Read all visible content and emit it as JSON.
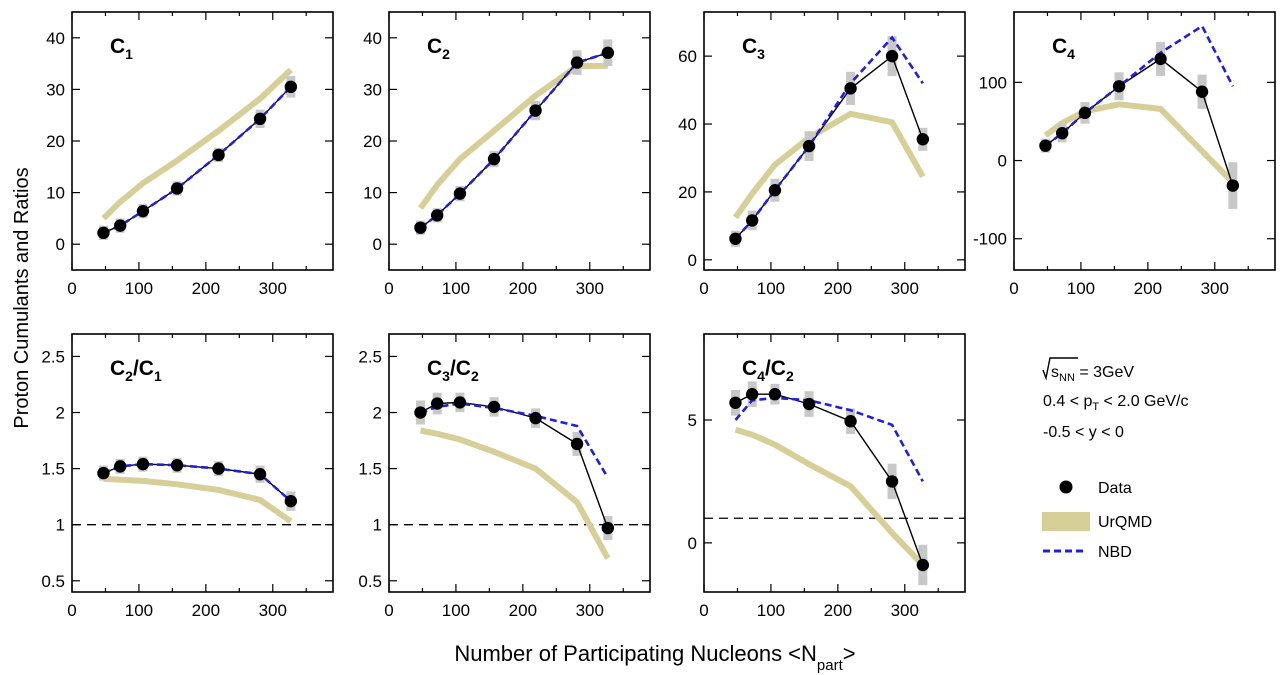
{
  "figure": {
    "ylabel": "Proton Cumulants and Ratios",
    "xlabel_main": "Number of Participating Nucleons <N",
    "xlabel_sub": "part",
    "xlabel_end": ">"
  },
  "info": {
    "sqrt_root": "s",
    "sqrt_sub": "NN",
    "energy_value": " = 3GeV",
    "pt_prefix": "0.4 < p",
    "pt_sub": "T",
    "pt_suffix": " < 2.0 GeV/c",
    "rapidity": "-0.5 < y < 0"
  },
  "legend": {
    "items": [
      {
        "label": "Data",
        "kind": "marker",
        "color": "#000000"
      },
      {
        "label": "UrQMD",
        "kind": "band",
        "color": "#d6cf98"
      },
      {
        "label": "NBD",
        "kind": "dashed",
        "color": "#1f1fe0"
      }
    ]
  },
  "colors": {
    "data": "#000000",
    "error_band": "#c8c8c8",
    "urqmd": "#d6cf98",
    "nbd": "#1f1fe0",
    "reference_line": "#000000"
  },
  "chart_data": [
    {
      "type": "line",
      "title_main": "C",
      "title_sub": "1",
      "title_main2": "",
      "title_sub2": "",
      "xlim": [
        0,
        390
      ],
      "ylim": [
        -5,
        45
      ],
      "xticks": [
        0,
        100,
        200,
        300
      ],
      "yticks": [
        0,
        10,
        20,
        30,
        40
      ],
      "series": [
        {
          "name": "Data",
          "x": [
            47,
            72,
            106,
            157,
            219,
            281,
            327
          ],
          "y": [
            2.2,
            3.6,
            6.4,
            10.8,
            17.3,
            24.3,
            30.5
          ],
          "err": [
            0.8,
            0.8,
            0.8,
            0.8,
            0.8,
            1.2,
            1.5
          ]
        },
        {
          "name": "UrQMD",
          "x": [
            47,
            72,
            106,
            157,
            219,
            281,
            327
          ],
          "y": [
            5.0,
            8.2,
            11.8,
            16.2,
            22.0,
            28.2,
            33.8
          ]
        },
        {
          "name": "NBD",
          "x": [
            47,
            72,
            106,
            157,
            219,
            281,
            327
          ],
          "y": [
            2.2,
            3.6,
            6.4,
            10.8,
            17.3,
            24.3,
            30.5
          ]
        }
      ]
    },
    {
      "type": "line",
      "title_main": "C",
      "title_sub": "2",
      "title_main2": "",
      "title_sub2": "",
      "xlim": [
        0,
        390
      ],
      "ylim": [
        -5,
        45
      ],
      "xticks": [
        0,
        100,
        200,
        300
      ],
      "yticks": [
        0,
        10,
        20,
        30,
        40
      ],
      "series": [
        {
          "name": "Data",
          "x": [
            47,
            72,
            106,
            157,
            219,
            281,
            327
          ],
          "y": [
            3.2,
            5.6,
            9.8,
            16.5,
            25.9,
            35.2,
            37.1
          ],
          "err": [
            0.8,
            0.8,
            0.9,
            1.0,
            1.3,
            1.8,
            2.0
          ]
        },
        {
          "name": "UrQMD",
          "x": [
            47,
            72,
            106,
            157,
            219,
            281,
            327
          ],
          "y": [
            7.0,
            11.5,
            16.5,
            22.0,
            28.8,
            34.5,
            34.6
          ]
        },
        {
          "name": "NBD",
          "x": [
            47,
            72,
            106,
            157,
            219,
            281,
            327
          ],
          "y": [
            3.2,
            5.6,
            9.8,
            16.5,
            25.9,
            35.2,
            37.1
          ]
        }
      ]
    },
    {
      "type": "line",
      "title_main": "C",
      "title_sub": "3",
      "title_main2": "",
      "title_sub2": "",
      "xlim": [
        0,
        390
      ],
      "ylim": [
        -3,
        73
      ],
      "xticks": [
        0,
        100,
        200,
        300
      ],
      "yticks": [
        0,
        20,
        40,
        60
      ],
      "series": [
        {
          "name": "Data",
          "x": [
            47,
            72,
            106,
            157,
            219,
            281,
            327
          ],
          "y": [
            6.2,
            11.6,
            20.5,
            33.5,
            50.5,
            60.0,
            35.5
          ],
          "err": [
            1.5,
            2.0,
            2.5,
            3.5,
            4.0,
            5.0,
            2.5
          ]
        },
        {
          "name": "UrQMD",
          "x": [
            47,
            72,
            106,
            157,
            219,
            281,
            327
          ],
          "y": [
            12.5,
            19.5,
            28.0,
            36.0,
            43.0,
            40.5,
            24.5
          ]
        },
        {
          "name": "NBD",
          "x": [
            47,
            72,
            106,
            157,
            219,
            281,
            327
          ],
          "y": [
            6.2,
            11.6,
            20.5,
            33.5,
            52.0,
            65.5,
            52.0
          ]
        }
      ]
    },
    {
      "type": "line",
      "title_main": "C",
      "title_sub": "4",
      "title_main2": "",
      "title_sub2": "",
      "xlim": [
        0,
        390
      ],
      "ylim": [
        -140,
        190
      ],
      "xticks": [
        0,
        100,
        200,
        300
      ],
      "yticks": [
        -100,
        0,
        100
      ],
      "series": [
        {
          "name": "Data",
          "x": [
            47,
            72,
            106,
            157,
            219,
            281,
            327
          ],
          "y": [
            19,
            35,
            61,
            95,
            130,
            88,
            -32
          ],
          "err": [
            5,
            8,
            10,
            14,
            18,
            18,
            26
          ]
        },
        {
          "name": "UrQMD",
          "x": [
            47,
            72,
            106,
            157,
            219,
            281,
            327
          ],
          "y": [
            32,
            48,
            63,
            72,
            66,
            12,
            -28
          ]
        },
        {
          "name": "NBD",
          "x": [
            47,
            72,
            106,
            157,
            219,
            281,
            327
          ],
          "y": [
            19,
            35,
            61,
            95,
            138,
            172,
            95
          ]
        }
      ]
    },
    {
      "type": "line",
      "title_main": "C",
      "title_sub": "2",
      "title_main2": "/C",
      "title_sub2": "1",
      "xlim": [
        0,
        390
      ],
      "ylim": [
        0.4,
        2.7
      ],
      "xticks": [
        0,
        100,
        200,
        300
      ],
      "yticks": [
        0.5,
        1,
        1.5,
        2,
        2.5
      ],
      "reference_y": 1,
      "series": [
        {
          "name": "Data",
          "x": [
            47,
            72,
            106,
            157,
            219,
            281,
            327
          ],
          "y": [
            1.46,
            1.52,
            1.54,
            1.53,
            1.5,
            1.45,
            1.21
          ],
          "err": [
            0.04,
            0.04,
            0.04,
            0.04,
            0.04,
            0.05,
            0.06
          ]
        },
        {
          "name": "UrQMD",
          "x": [
            47,
            72,
            106,
            157,
            219,
            281,
            327
          ],
          "y": [
            1.41,
            1.4,
            1.39,
            1.36,
            1.31,
            1.22,
            1.03
          ]
        },
        {
          "name": "NBD",
          "x": [
            47,
            72,
            106,
            157,
            219,
            281,
            327
          ],
          "y": [
            1.46,
            1.52,
            1.54,
            1.53,
            1.5,
            1.45,
            1.21
          ]
        }
      ]
    },
    {
      "type": "line",
      "title_main": "C",
      "title_sub": "3",
      "title_main2": "/C",
      "title_sub2": "2",
      "xlim": [
        0,
        390
      ],
      "ylim": [
        0.4,
        2.7
      ],
      "xticks": [
        0,
        100,
        200,
        300
      ],
      "yticks": [
        0.5,
        1,
        1.5,
        2,
        2.5
      ],
      "reference_y": 1,
      "series": [
        {
          "name": "Data",
          "x": [
            47,
            72,
            106,
            157,
            219,
            281,
            327
          ],
          "y": [
            2.0,
            2.08,
            2.09,
            2.05,
            1.95,
            1.72,
            0.97
          ],
          "err": [
            0.08,
            0.07,
            0.06,
            0.06,
            0.06,
            0.08,
            0.08
          ]
        },
        {
          "name": "UrQMD",
          "x": [
            47,
            72,
            106,
            157,
            219,
            281,
            327
          ],
          "y": [
            1.84,
            1.81,
            1.76,
            1.65,
            1.5,
            1.2,
            0.7
          ]
        },
        {
          "name": "NBD",
          "x": [
            47,
            72,
            106,
            157,
            219,
            281,
            327
          ],
          "y": [
            2.0,
            2.05,
            2.08,
            2.04,
            1.97,
            1.88,
            1.42
          ]
        }
      ]
    },
    {
      "type": "line",
      "title_main": "C",
      "title_sub": "4",
      "title_main2": "/C",
      "title_sub2": "2",
      "xlim": [
        0,
        390
      ],
      "ylim": [
        -2,
        8.5
      ],
      "xticks": [
        0,
        100,
        200,
        300
      ],
      "yticks": [
        0,
        5
      ],
      "reference_y": 1,
      "series": [
        {
          "name": "Data",
          "x": [
            47,
            72,
            106,
            157,
            219,
            281,
            327
          ],
          "y": [
            5.7,
            6.05,
            6.05,
            5.65,
            4.95,
            2.5,
            -0.9
          ],
          "err": [
            0.4,
            0.4,
            0.3,
            0.4,
            0.4,
            0.6,
            0.7
          ]
        },
        {
          "name": "UrQMD",
          "x": [
            47,
            72,
            106,
            157,
            219,
            281,
            327
          ],
          "y": [
            4.6,
            4.4,
            4.0,
            3.2,
            2.3,
            0.4,
            -0.9
          ]
        },
        {
          "name": "NBD",
          "x": [
            47,
            72,
            106,
            157,
            219,
            281,
            327
          ],
          "y": [
            5.0,
            5.8,
            5.9,
            5.8,
            5.4,
            4.8,
            2.5
          ]
        }
      ]
    }
  ]
}
